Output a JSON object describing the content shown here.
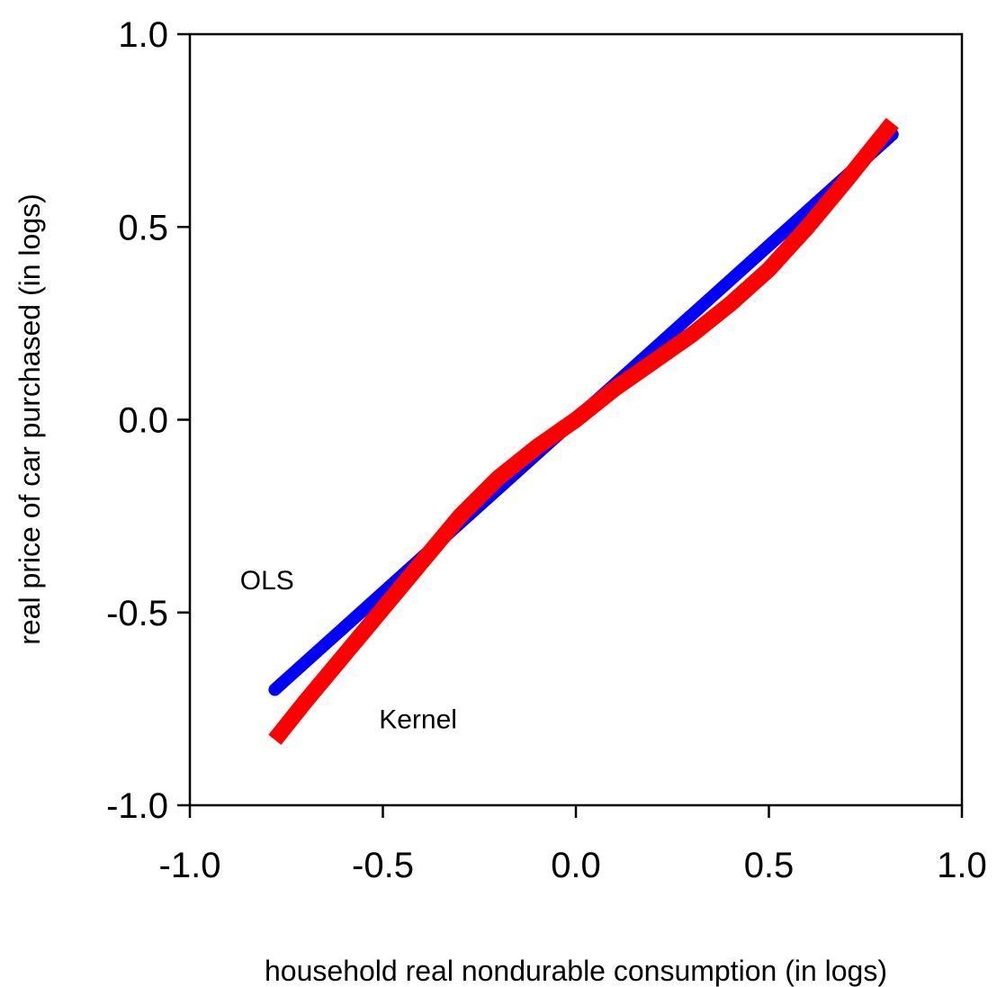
{
  "chart_data": {
    "type": "line",
    "xlabel": "household real nondurable consumption (in logs)",
    "ylabel": "real price of car purchased (in logs)",
    "xlim": [
      -1.0,
      1.0
    ],
    "ylim": [
      -1.0,
      1.0
    ],
    "x_ticks": [
      "-1.0",
      "-0.5",
      "0.0",
      "0.5",
      "1.0"
    ],
    "y_ticks": [
      "1.0",
      "0.5",
      "0.0",
      "-0.5",
      "-1.0"
    ],
    "grid": false,
    "series": [
      {
        "name": "OLS",
        "color": "#0000ff",
        "x": [
          -0.78,
          0.82
        ],
        "y": [
          -0.7,
          0.74
        ]
      },
      {
        "name": "Kernel",
        "color": "#ff0000",
        "x": [
          -0.78,
          -0.7,
          -0.6,
          -0.5,
          -0.4,
          -0.3,
          -0.2,
          -0.1,
          0.0,
          0.1,
          0.2,
          0.3,
          0.4,
          0.5,
          0.6,
          0.7,
          0.82
        ],
        "y": [
          -0.83,
          -0.73,
          -0.61,
          -0.49,
          -0.37,
          -0.25,
          -0.15,
          -0.07,
          0.0,
          0.08,
          0.15,
          0.22,
          0.3,
          0.39,
          0.5,
          0.62,
          0.77
        ]
      }
    ],
    "annotations": [
      {
        "text": "OLS",
        "x": -0.87,
        "y": -0.44
      },
      {
        "text": "Kernel",
        "x": -0.51,
        "y": -0.8
      }
    ]
  }
}
